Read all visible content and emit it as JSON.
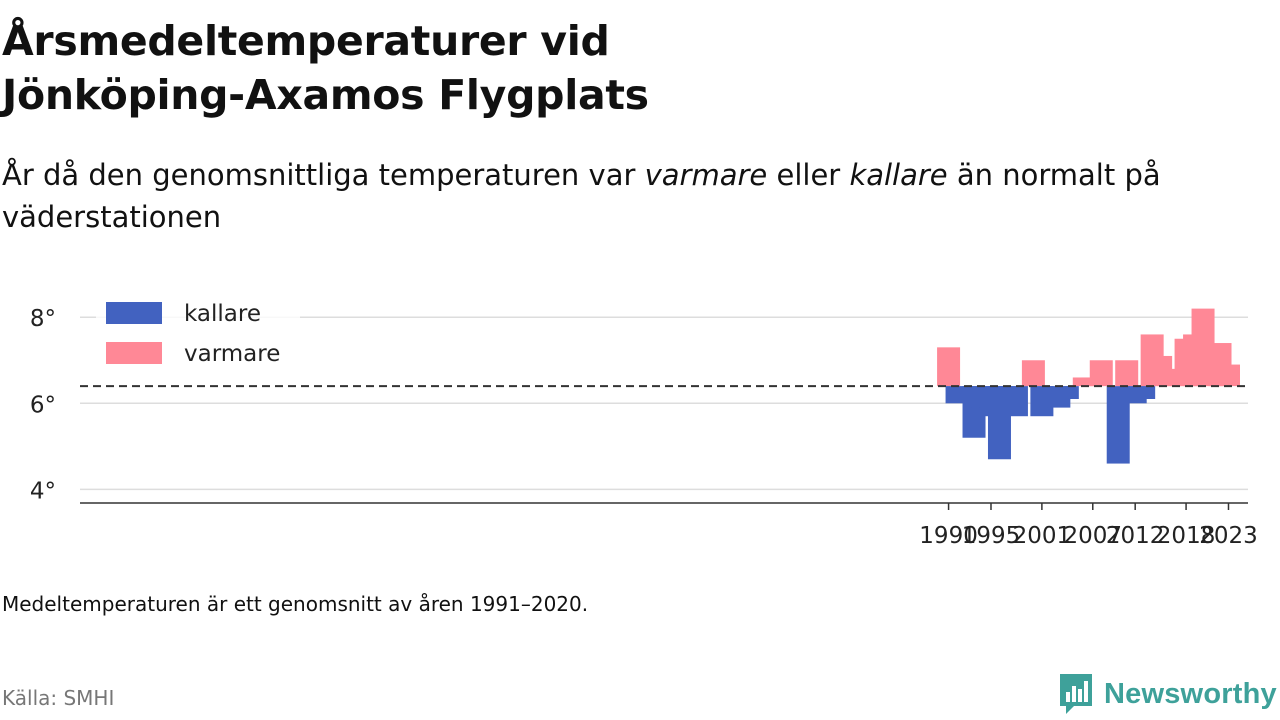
{
  "header": {
    "title_line1": "Årsmedeltemperaturer vid",
    "title_line2": "Jönköping-Axamos Flygplats",
    "subtitle_before": "År då den genomsnittliga temperaturen var ",
    "subtitle_warm": "varmare",
    "subtitle_middle": " eller ",
    "subtitle_cold": "kallare",
    "subtitle_after": " än normalt på väderstationen"
  },
  "footer": {
    "note": "Medeltemperaturen är ett genomsnitt av åren 1991–2020.",
    "source": "Källa: SMHI",
    "brand": "Newsworthy"
  },
  "colors": {
    "cold": "#4262c0",
    "warm": "#ff8896",
    "baseline": "#333333",
    "grid": "#dddddd",
    "brand": "#3ea19a"
  },
  "chart_data": {
    "type": "bar",
    "baseline": 6.4,
    "ylim": [
      3.8,
      8.4
    ],
    "yticks": [
      4,
      6,
      8
    ],
    "ytick_labels": [
      "4°",
      "6°",
      "8°"
    ],
    "xlim": [
      1887.6,
      2025.3
    ],
    "xticks": [
      1990,
      1995,
      2001,
      2007,
      2012,
      2018,
      2023
    ],
    "legend": {
      "placement": "top-left",
      "entries": [
        {
          "key": "cold",
          "label": "kallare"
        },
        {
          "key": "warm",
          "label": "varmare"
        }
      ]
    },
    "points": [
      {
        "year": 1990,
        "value": 7.3
      },
      {
        "year": 1991,
        "value": 6.0
      },
      {
        "year": 1993,
        "value": 5.2
      },
      {
        "year": 1994,
        "value": 5.9
      },
      {
        "year": 1995,
        "value": 5.7
      },
      {
        "year": 1996,
        "value": 4.7
      },
      {
        "year": 1997,
        "value": 6.3
      },
      {
        "year": 1998,
        "value": 5.7
      },
      {
        "year": 2000,
        "value": 7.0
      },
      {
        "year": 2001,
        "value": 5.7
      },
      {
        "year": 2003,
        "value": 5.9
      },
      {
        "year": 2004,
        "value": 6.1
      },
      {
        "year": 2006,
        "value": 6.6
      },
      {
        "year": 2007,
        "value": 6.6
      },
      {
        "year": 2008,
        "value": 7.0
      },
      {
        "year": 2010,
        "value": 4.6
      },
      {
        "year": 2011,
        "value": 7.0
      },
      {
        "year": 2012,
        "value": 6.0
      },
      {
        "year": 2013,
        "value": 6.1
      },
      {
        "year": 2014,
        "value": 7.6
      },
      {
        "year": 2015,
        "value": 7.1
      },
      {
        "year": 2016,
        "value": 6.7
      },
      {
        "year": 2017,
        "value": 6.8
      },
      {
        "year": 2018,
        "value": 7.5
      },
      {
        "year": 2019,
        "value": 7.6
      },
      {
        "year": 2020,
        "value": 8.2
      },
      {
        "year": 2021,
        "value": 6.7
      },
      {
        "year": 2022,
        "value": 7.4
      },
      {
        "year": 2023,
        "value": 6.9
      }
    ]
  }
}
